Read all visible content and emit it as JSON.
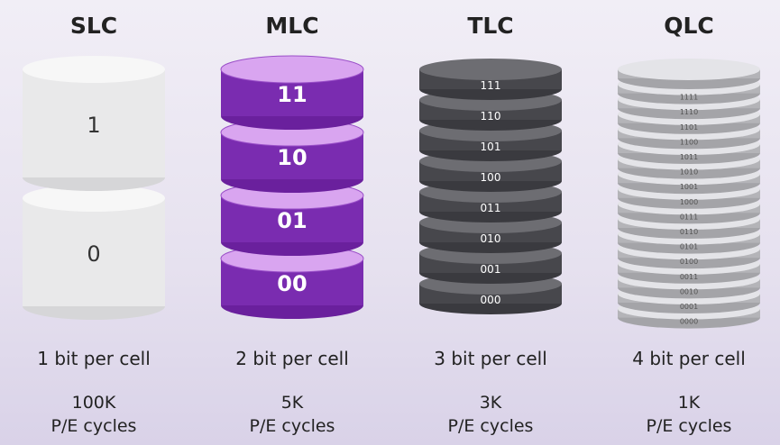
{
  "columns": [
    {
      "title": "SLC",
      "levels": [
        "1",
        "0"
      ],
      "bits_label": "1 bit per cell",
      "cycles": "100K",
      "cycles_label": "P/E cycles",
      "colors": {
        "top": "#f7f7f7",
        "body": "#e9e9ea",
        "edge": "#d6d6d8",
        "text": "#333333"
      }
    },
    {
      "title": "MLC",
      "levels": [
        "11",
        "10",
        "01",
        "00"
      ],
      "bits_label": "2 bit per cell",
      "cycles": "5K",
      "cycles_label": "P/E cycles",
      "colors": {
        "top": "#d9a5f0",
        "body": "#7a2cb0",
        "edge": "#6a209d",
        "text": "#ffffff"
      }
    },
    {
      "title": "TLC",
      "levels": [
        "111",
        "110",
        "101",
        "100",
        "011",
        "010",
        "001",
        "000"
      ],
      "bits_label": "3 bit per cell",
      "cycles": "3K",
      "cycles_label": "P/E cycles",
      "colors": {
        "top": "#6d6d72",
        "body": "#47474c",
        "edge": "#3a3a3f",
        "text": "#ffffff"
      }
    },
    {
      "title": "QLC",
      "levels": [
        "1111",
        "1110",
        "1101",
        "1100",
        "1011",
        "1010",
        "1001",
        "1000",
        "0111",
        "0110",
        "0101",
        "0100",
        "0011",
        "0010",
        "0001",
        "0000"
      ],
      "bits_label": "4 bit per cell",
      "cycles": "1K",
      "cycles_label": "P/E cycles",
      "colors": {
        "top": "#e4e4e8",
        "body": "#b4b4b8",
        "edge": "#a4a4a8",
        "text": "#555555"
      }
    }
  ]
}
